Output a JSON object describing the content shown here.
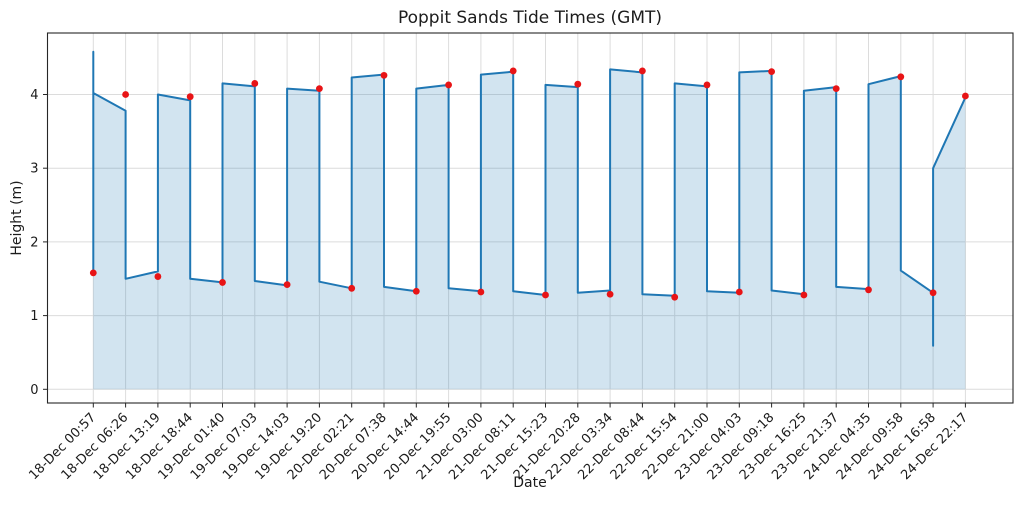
{
  "title": "Poppit Sands Tide Times (GMT)",
  "chart_data": {
    "type": "line",
    "title": "Poppit Sands Tide Times (GMT)",
    "xlabel": "Date",
    "ylabel": "Height (m)",
    "ylim": [
      -0.19,
      4.83
    ],
    "yticks": [
      0,
      1,
      2,
      3,
      4
    ],
    "grid": true,
    "legend": "none",
    "categories": [
      "18-Dec 00:57",
      "18-Dec 06:26",
      "18-Dec 13:19",
      "18-Dec 18:44",
      "19-Dec 01:40",
      "19-Dec 07:03",
      "19-Dec 14:03",
      "19-Dec 19:20",
      "20-Dec 02:21",
      "20-Dec 07:38",
      "20-Dec 14:44",
      "20-Dec 19:55",
      "21-Dec 03:00",
      "21-Dec 08:11",
      "21-Dec 15:23",
      "21-Dec 20:28",
      "22-Dec 03:34",
      "22-Dec 08:44",
      "22-Dec 15:54",
      "22-Dec 21:00",
      "23-Dec 04:03",
      "23-Dec 09:18",
      "23-Dec 16:25",
      "23-Dec 21:37",
      "24-Dec 04:35",
      "24-Dec 09:58",
      "24-Dec 16:58",
      "24-Dec 22:17"
    ],
    "series": [
      {
        "name": "tide-curve",
        "type": "line-area",
        "color": "#1f77b4",
        "fill_color": "#1f77b4",
        "fill_opacity": 0.2,
        "points": [
          [
            0,
            4.58
          ],
          [
            0,
            1.55
          ],
          [
            0,
            4.02
          ],
          [
            1,
            3.78
          ],
          [
            1,
            1.5
          ],
          [
            2,
            1.6
          ],
          [
            2,
            4.0
          ],
          [
            3,
            3.92
          ],
          [
            3,
            1.5
          ],
          [
            4,
            1.45
          ],
          [
            4,
            4.15
          ],
          [
            5,
            4.11
          ],
          [
            5,
            1.47
          ],
          [
            6,
            1.41
          ],
          [
            6,
            4.08
          ],
          [
            7,
            4.05
          ],
          [
            7,
            1.46
          ],
          [
            8,
            1.37
          ],
          [
            8,
            4.23
          ],
          [
            9,
            4.27
          ],
          [
            9,
            1.39
          ],
          [
            10,
            1.33
          ],
          [
            10,
            4.08
          ],
          [
            11,
            4.13
          ],
          [
            11,
            1.37
          ],
          [
            12,
            1.33
          ],
          [
            12,
            4.27
          ],
          [
            13,
            4.31
          ],
          [
            13,
            1.33
          ],
          [
            14,
            1.28
          ],
          [
            14,
            4.13
          ],
          [
            15,
            4.1
          ],
          [
            15,
            1.31
          ],
          [
            16,
            1.34
          ],
          [
            16,
            4.34
          ],
          [
            17,
            4.3
          ],
          [
            17,
            1.29
          ],
          [
            18,
            1.27
          ],
          [
            18,
            4.15
          ],
          [
            19,
            4.11
          ],
          [
            19,
            1.33
          ],
          [
            20,
            1.31
          ],
          [
            20,
            4.3
          ],
          [
            21,
            4.32
          ],
          [
            21,
            1.34
          ],
          [
            22,
            1.29
          ],
          [
            22,
            4.05
          ],
          [
            23,
            4.1
          ],
          [
            23,
            1.39
          ],
          [
            24,
            1.36
          ],
          [
            24,
            4.14
          ],
          [
            25,
            4.25
          ],
          [
            25,
            1.61
          ],
          [
            26,
            1.31
          ],
          [
            26,
            0.59
          ],
          [
            26,
            3.0
          ],
          [
            27,
            3.96
          ]
        ]
      },
      {
        "name": "tide-events",
        "type": "scatter",
        "color": "#e81416",
        "marker": "circle",
        "values": [
          1.58,
          4.0,
          1.53,
          3.97,
          1.45,
          4.15,
          1.42,
          4.08,
          1.37,
          4.26,
          1.33,
          4.13,
          1.32,
          4.32,
          1.28,
          4.14,
          1.29,
          4.32,
          1.25,
          4.13,
          1.32,
          4.31,
          1.28,
          4.08,
          1.35,
          4.24,
          1.31,
          3.98
        ]
      }
    ],
    "colors": {
      "line": "#1f77b4",
      "fill_effective": "#d2e4f0",
      "marker": "#e81416",
      "grid": "#dcdcdc",
      "axis": "#262626",
      "text": "#1c1c1c",
      "background": "#ffffff"
    }
  }
}
